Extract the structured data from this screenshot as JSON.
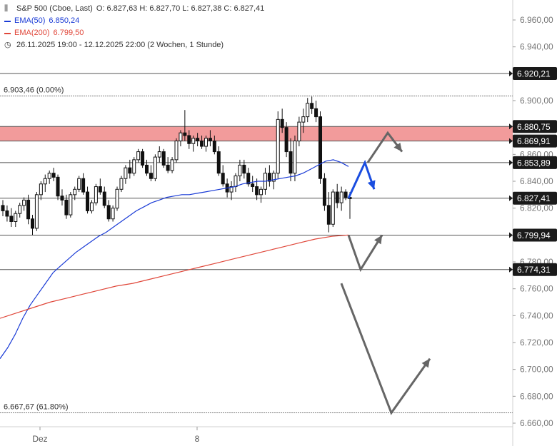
{
  "legend": {
    "instrument": "S&P 500 (Cboe, Last)",
    "ohlc": "O: 6.827,63  H: 6.827,70  L: 6.827,38  C: 6.827,41",
    "ema50_label": "EMA(50)",
    "ema50_value": "6.850,24",
    "ema200_label": "EMA(200)",
    "ema200_value": "6.799,50",
    "range": "26.11.2025 19:00 - 12.12.2025 22:00   (2 Wochen, 1 Stunde)"
  },
  "colors": {
    "up": "#ffffff",
    "down": "#111111",
    "ema50": "#1a3bd6",
    "ema200": "#e0473a",
    "zone": "#f08a8a",
    "arrow_gray": "#666666",
    "arrow_blue": "#1a4de0",
    "level_badge": "#1a1a1a"
  },
  "chart_data": {
    "type": "candlestick",
    "timeframe": "1 Stunde",
    "ylim": [
      6655,
      6975
    ],
    "x_ticks": [
      "Dez",
      "8"
    ],
    "y_ticks": [
      "6.960,00",
      "6.940,00",
      "6.920,00",
      "6.900,00",
      "6.880,00",
      "6.860,00",
      "6.840,00",
      "6.820,00",
      "6.800,00",
      "6.780,00",
      "6.760,00",
      "6.740,00",
      "6.720,00",
      "6.700,00",
      "6.680,00",
      "6.660,00"
    ],
    "y_tick_values": [
      6960,
      6940,
      6920,
      6900,
      6880,
      6860,
      6840,
      6820,
      6800,
      6780,
      6760,
      6740,
      6720,
      6700,
      6680,
      6660
    ],
    "levels": [
      {
        "value": 6920.21,
        "label": "6.920,21"
      },
      {
        "value": 6880.75,
        "label": "6.880,75"
      },
      {
        "value": 6869.91,
        "label": "6.869,91"
      },
      {
        "value": 6853.89,
        "label": "6.853,89"
      },
      {
        "value": 6827.41,
        "label": "6.827,41"
      },
      {
        "value": 6799.94,
        "label": "6.799,94"
      },
      {
        "value": 6774.31,
        "label": "6.774,31"
      }
    ],
    "annotations": [
      {
        "value": 6903.46,
        "label": "6.903,46 (0.00%)"
      },
      {
        "value": 6667.67,
        "label": "6.667,67 (61.80%)"
      }
    ],
    "resistance_zone": [
      6869.91,
      6880.75
    ],
    "candles": [
      [
        6822,
        6826,
        6814,
        6818
      ],
      [
        6818,
        6822,
        6810,
        6814
      ],
      [
        6814,
        6820,
        6806,
        6810
      ],
      [
        6810,
        6818,
        6806,
        6816
      ],
      [
        6816,
        6824,
        6813,
        6822
      ],
      [
        6822,
        6828,
        6818,
        6826
      ],
      [
        6826,
        6830,
        6808,
        6812
      ],
      [
        6812,
        6815,
        6800,
        6805
      ],
      [
        6805,
        6832,
        6803,
        6830
      ],
      [
        6830,
        6840,
        6826,
        6838
      ],
      [
        6838,
        6845,
        6832,
        6842
      ],
      [
        6842,
        6848,
        6838,
        6846
      ],
      [
        6846,
        6850,
        6840,
        6843
      ],
      [
        6843,
        6845,
        6826,
        6829
      ],
      [
        6829,
        6834,
        6822,
        6826
      ],
      [
        6826,
        6830,
        6812,
        6815
      ],
      [
        6815,
        6832,
        6813,
        6830
      ],
      [
        6830,
        6836,
        6826,
        6834
      ],
      [
        6834,
        6844,
        6832,
        6842
      ],
      [
        6842,
        6846,
        6830,
        6832
      ],
      [
        6832,
        6836,
        6816,
        6818
      ],
      [
        6818,
        6826,
        6816,
        6824
      ],
      [
        6824,
        6838,
        6822,
        6836
      ],
      [
        6836,
        6842,
        6830,
        6832
      ],
      [
        6832,
        6836,
        6820,
        6822
      ],
      [
        6822,
        6826,
        6810,
        6812
      ],
      [
        6812,
        6822,
        6810,
        6820
      ],
      [
        6820,
        6836,
        6818,
        6834
      ],
      [
        6834,
        6844,
        6832,
        6842
      ],
      [
        6842,
        6852,
        6838,
        6850
      ],
      [
        6850,
        6856,
        6842,
        6846
      ],
      [
        6846,
        6858,
        6844,
        6856
      ],
      [
        6856,
        6864,
        6854,
        6862
      ],
      [
        6862,
        6864,
        6850,
        6852
      ],
      [
        6852,
        6856,
        6844,
        6846
      ],
      [
        6846,
        6852,
        6840,
        6842
      ],
      [
        6842,
        6860,
        6840,
        6858
      ],
      [
        6858,
        6866,
        6854,
        6862
      ],
      [
        6862,
        6864,
        6850,
        6852
      ],
      [
        6852,
        6858,
        6846,
        6848
      ],
      [
        6848,
        6858,
        6846,
        6856
      ],
      [
        6856,
        6872,
        6854,
        6870
      ],
      [
        6870,
        6878,
        6866,
        6876
      ],
      [
        6876,
        6893,
        6870,
        6874
      ],
      [
        6874,
        6878,
        6864,
        6868
      ],
      [
        6868,
        6874,
        6862,
        6872
      ],
      [
        6872,
        6876,
        6866,
        6870
      ],
      [
        6870,
        6874,
        6864,
        6866
      ],
      [
        6866,
        6874,
        6862,
        6872
      ],
      [
        6872,
        6878,
        6866,
        6870
      ],
      [
        6870,
        6874,
        6860,
        6862
      ],
      [
        6862,
        6866,
        6844,
        6846
      ],
      [
        6846,
        6852,
        6836,
        6838
      ],
      [
        6838,
        6842,
        6828,
        6832
      ],
      [
        6832,
        6840,
        6826,
        6836
      ],
      [
        6836,
        6846,
        6832,
        6844
      ],
      [
        6844,
        6856,
        6840,
        6852
      ],
      [
        6852,
        6856,
        6842,
        6846
      ],
      [
        6846,
        6850,
        6836,
        6838
      ],
      [
        6838,
        6844,
        6832,
        6836
      ],
      [
        6836,
        6842,
        6826,
        6830
      ],
      [
        6830,
        6836,
        6824,
        6834
      ],
      [
        6834,
        6850,
        6830,
        6846
      ],
      [
        6846,
        6852,
        6836,
        6840
      ],
      [
        6840,
        6848,
        6834,
        6846
      ],
      [
        6846,
        6892,
        6842,
        6886
      ],
      [
        6886,
        6894,
        6876,
        6880
      ],
      [
        6880,
        6884,
        6858,
        6862
      ],
      [
        6862,
        6872,
        6840,
        6846
      ],
      [
        6846,
        6874,
        6840,
        6870
      ],
      [
        6870,
        6888,
        6866,
        6884
      ],
      [
        6884,
        6894,
        6876,
        6888
      ],
      [
        6888,
        6902,
        6884,
        6898
      ],
      [
        6898,
        6903,
        6890,
        6894
      ],
      [
        6894,
        6900,
        6884,
        6888
      ],
      [
        6888,
        6892,
        6838,
        6842
      ],
      [
        6842,
        6846,
        6818,
        6822
      ],
      [
        6822,
        6832,
        6802,
        6808
      ],
      [
        6808,
        6834,
        6806,
        6832
      ],
      [
        6832,
        6838,
        6820,
        6824
      ],
      [
        6824,
        6836,
        6818,
        6832
      ],
      [
        6832,
        6834,
        6826,
        6828
      ],
      [
        6828,
        6832,
        6812,
        6827
      ]
    ],
    "series": [
      {
        "name": "EMA(50)",
        "values": [
          6708,
          6716,
          6726,
          6738,
          6748,
          6756,
          6764,
          6772,
          6777,
          6782,
          6787,
          6791,
          6795,
          6799,
          6802,
          6806,
          6810,
          6814,
          6818,
          6821,
          6824,
          6826,
          6828,
          6829,
          6830,
          6830,
          6831,
          6832,
          6833,
          6834,
          6835,
          6836,
          6838,
          6839,
          6840,
          6840,
          6841,
          6842,
          6843,
          6844,
          6846,
          6849,
          6852,
          6855,
          6856,
          6854,
          6851
        ]
      },
      {
        "name": "EMA(200)",
        "values": [
          6738,
          6742,
          6746,
          6750,
          6753,
          6756,
          6759,
          6762,
          6764,
          6767,
          6770,
          6773,
          6776,
          6779,
          6782,
          6785,
          6788,
          6791,
          6794,
          6797,
          6799,
          6800
        ]
      }
    ],
    "projection_arrows": [
      {
        "color": "gray",
        "points": [
          [
            6853.89
          ],
          [
            6876
          ],
          [
            6862
          ]
        ]
      },
      {
        "color": "blue",
        "points": [
          [
            6827.41
          ],
          [
            6853.89
          ],
          [
            6834
          ]
        ]
      },
      {
        "color": "gray",
        "points": [
          [
            6799.94
          ],
          [
            6774.31
          ],
          [
            6799.94
          ]
        ]
      },
      {
        "color": "gray",
        "points": [
          [
            6764
          ],
          [
            6667.67
          ],
          [
            6708
          ]
        ]
      }
    ]
  }
}
